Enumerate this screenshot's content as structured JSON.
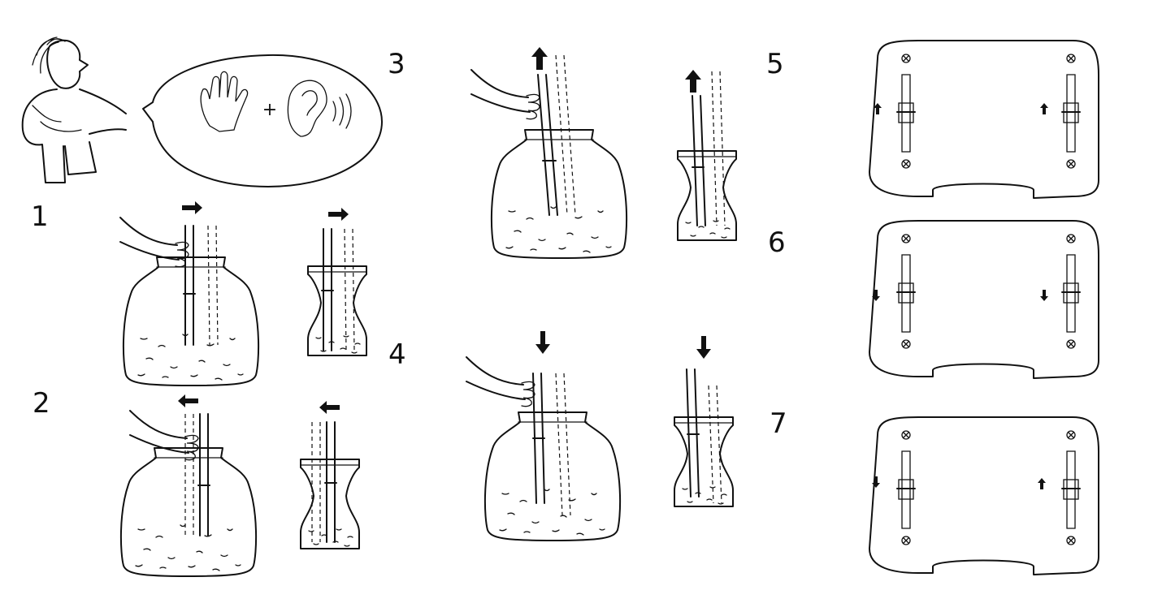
{
  "steps": [
    {
      "id": "1",
      "label": "1"
    },
    {
      "id": "2",
      "label": "2"
    },
    {
      "id": "3",
      "label": "3"
    },
    {
      "id": "4",
      "label": "4"
    },
    {
      "id": "5",
      "label": "5"
    },
    {
      "id": "6",
      "label": "6"
    },
    {
      "id": "7",
      "label": "7"
    }
  ],
  "bubble": {
    "plus": "+",
    "icons": [
      "hand-icon",
      "ear-icon",
      "sound-waves-icon"
    ]
  },
  "ink_color": "#111111",
  "background": "#ffffff"
}
